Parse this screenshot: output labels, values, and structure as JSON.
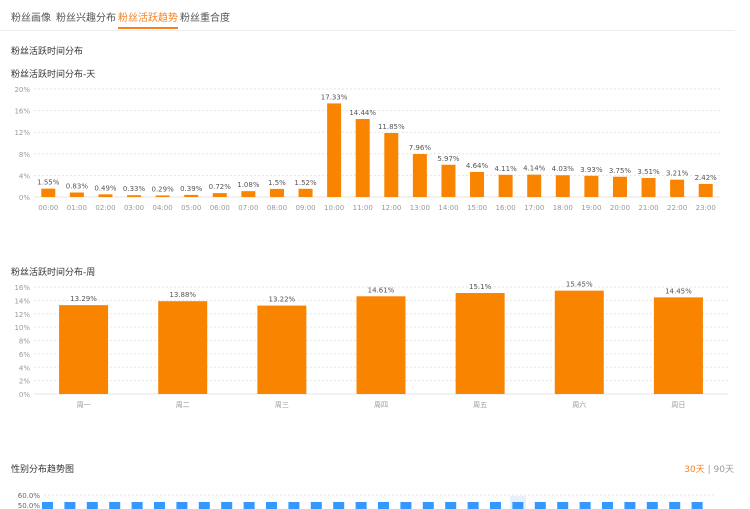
{
  "tabs": [
    "粉丝画像",
    "粉丝兴趣分布",
    "粉丝活跃趋势",
    "粉丝重合度"
  ],
  "active_tab": 2,
  "section_title": "粉丝活跃时间分布",
  "gender_title": "性别分布趋势图",
  "range": {
    "a": "30天",
    "sep": "|",
    "b": "90天",
    "selected": "30天"
  },
  "colors": {
    "accent": "#f58220",
    "bar": "#f98400",
    "blue": "#3399ff"
  },
  "chart_data": [
    {
      "type": "bar",
      "title": "粉丝活跃时间分布-天",
      "ylim": [
        0,
        20
      ],
      "yticks": [
        "0%",
        "4%",
        "8%",
        "12%",
        "16%",
        "20%"
      ],
      "categories": [
        "00:00",
        "01:00",
        "02:00",
        "03:00",
        "04:00",
        "05:00",
        "06:00",
        "07:00",
        "08:00",
        "09:00",
        "10:00",
        "11:00",
        "12:00",
        "13:00",
        "14:00",
        "15:00",
        "16:00",
        "17:00",
        "18:00",
        "19:00",
        "20:00",
        "21:00",
        "22:00",
        "23:00"
      ],
      "values": [
        1.55,
        0.83,
        0.49,
        0.33,
        0.29,
        0.39,
        0.72,
        1.08,
        1.5,
        1.52,
        17.33,
        14.44,
        11.85,
        7.96,
        5.97,
        4.64,
        4.11,
        4.14,
        4.03,
        3.93,
        3.75,
        3.51,
        3.21,
        2.42
      ],
      "labels": [
        "1.55%",
        "0.83%",
        "0.49%",
        "0.33%",
        "0.29%",
        "0.39%",
        "0.72%",
        "1.08%",
        "1.5%",
        "1.52%",
        "17.33%",
        "14.44%",
        "11.85%",
        "7.96%",
        "5.97%",
        "4.64%",
        "4.11%",
        "4.14%",
        "4.03%",
        "3.93%",
        "3.75%",
        "3.51%",
        "3.21%",
        "2.42%"
      ]
    },
    {
      "type": "bar",
      "title": "粉丝活跃时间分布-周",
      "ylim": [
        0,
        16
      ],
      "yticks": [
        "0%",
        "2%",
        "4%",
        "6%",
        "8%",
        "10%",
        "12%",
        "14%",
        "16%"
      ],
      "categories": [
        "周一",
        "周二",
        "周三",
        "周四",
        "周五",
        "周六",
        "周日"
      ],
      "values": [
        13.29,
        13.88,
        13.22,
        14.61,
        15.1,
        15.45,
        14.45
      ],
      "labels": [
        "13.29%",
        "13.88%",
        "13.22%",
        "14.61%",
        "15.1%",
        "15.45%",
        "14.45%"
      ]
    },
    {
      "type": "bar",
      "title": "性别分布趋势图",
      "yticks": [
        "50.0%",
        "60.0%"
      ]
    }
  ]
}
